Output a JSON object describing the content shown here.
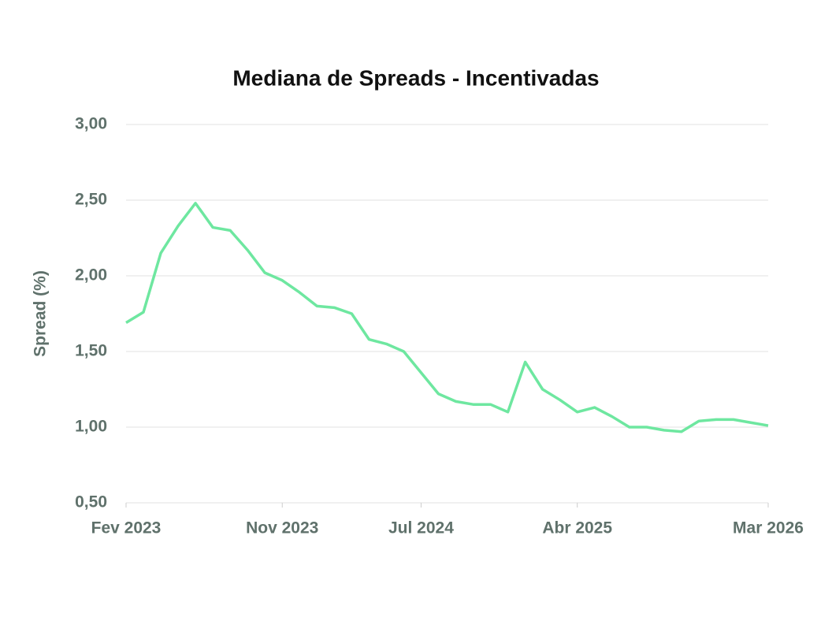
{
  "chart_data": {
    "type": "line",
    "title": "Mediana de Spreads - Incentivadas",
    "y_label": "Spread (%)",
    "x": [
      "2023-02",
      "2023-03",
      "2023-04",
      "2023-05",
      "2023-06",
      "2023-07",
      "2023-08",
      "2023-09",
      "2023-10",
      "2023-11",
      "2023-12",
      "2024-01",
      "2024-02",
      "2024-03",
      "2024-04",
      "2024-05",
      "2024-06",
      "2024-07",
      "2024-08",
      "2024-09",
      "2024-10",
      "2024-11",
      "2024-12",
      "2025-01",
      "2025-02",
      "2025-03",
      "2025-04",
      "2025-05",
      "2025-06",
      "2025-07",
      "2025-08",
      "2025-09",
      "2025-10",
      "2025-11",
      "2025-12",
      "2026-01",
      "2026-02",
      "2026-03"
    ],
    "series": [
      {
        "color": "#6ee7a0",
        "values": [
          1.69,
          1.76,
          2.15,
          2.33,
          2.48,
          2.32,
          2.3,
          2.17,
          2.02,
          1.97,
          1.89,
          1.8,
          1.79,
          1.75,
          1.58,
          1.55,
          1.5,
          1.36,
          1.22,
          1.17,
          1.15,
          1.15,
          1.1,
          1.43,
          1.25,
          1.18,
          1.1,
          1.13,
          1.07,
          1.0,
          1.0,
          0.98,
          0.97,
          1.04,
          1.05,
          1.05,
          1.03,
          1.01
        ]
      }
    ],
    "xlim": [
      "2023-02",
      "2026-03"
    ],
    "xticks": [
      {
        "value": "2023-02",
        "label": "Fev 2023"
      },
      {
        "value": "2023-11",
        "label": "Nov 2023"
      },
      {
        "value": "2024-07",
        "label": "Jul 2024"
      },
      {
        "value": "2025-04",
        "label": "Abr 2025"
      },
      {
        "value": "2026-03",
        "label": "Mar 2026"
      }
    ],
    "ylim": [
      0.5,
      3.0
    ],
    "yticks": [
      {
        "value": 0.5,
        "label": "0,50"
      },
      {
        "value": 1.0,
        "label": "1,00"
      },
      {
        "value": 1.5,
        "label": "1,50"
      },
      {
        "value": 2.0,
        "label": "2,00"
      },
      {
        "value": 2.5,
        "label": "2,50"
      },
      {
        "value": 3.0,
        "label": "3,00"
      }
    ],
    "grid": true
  }
}
